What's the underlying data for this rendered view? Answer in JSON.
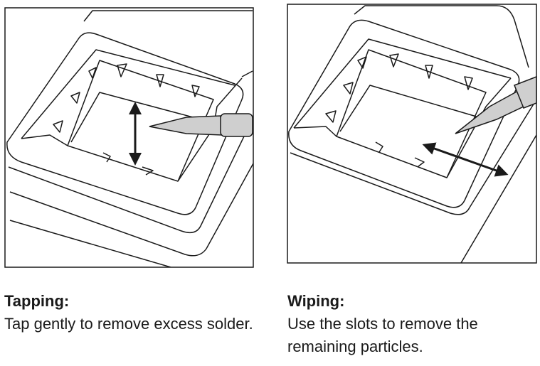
{
  "panels": [
    {
      "title": "Tapping:",
      "text": "Tap gently to remove excess solder.",
      "arrow_direction": "vertical"
    },
    {
      "title": "Wiping:",
      "text": "Use the slots to remove the remaining particles.",
      "arrow_direction": "diagonal"
    }
  ],
  "colors": {
    "line": "#1a1a1a",
    "tool_fill": "#cfcfcf",
    "background": "#ffffff"
  }
}
